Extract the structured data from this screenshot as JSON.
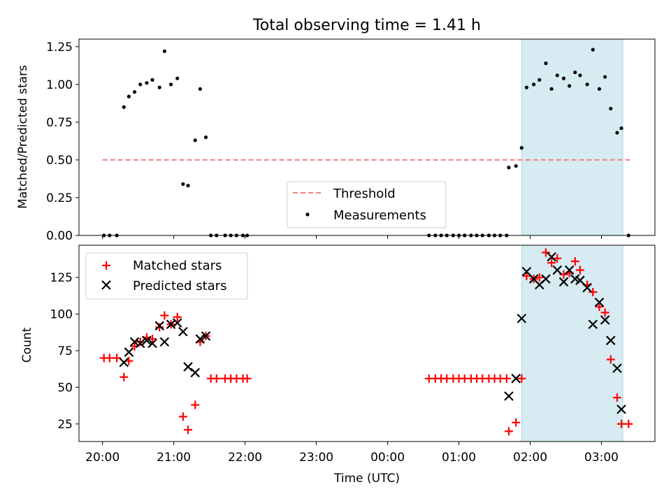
{
  "chart_data": [
    {
      "type": "scatter",
      "title": "Total observing time = 1.41 h",
      "xlabel": "",
      "ylabel": "Matched/Predicted stars",
      "ylim": [
        0,
        1.3
      ],
      "yticks": [
        "0.00",
        "0.25",
        "0.50",
        "0.75",
        "1.00",
        "1.25"
      ],
      "xlim": [
        19.67,
        27.75
      ],
      "shaded_region": [
        25.88,
        27.3
      ],
      "shaded_color": "#add8e6",
      "threshold": {
        "name": "Threshold",
        "value": 0.5,
        "x": [
          20.0,
          27.4
        ],
        "color": "#f08080"
      },
      "legend": {
        "position": "bottom-center",
        "entries": [
          "Threshold",
          "Measurements"
        ]
      },
      "series": [
        {
          "name": "Measurements",
          "color": "#000000",
          "x": [
            20.02,
            20.1,
            20.2,
            20.3,
            20.37,
            20.45,
            20.53,
            20.62,
            20.7,
            20.8,
            20.87,
            20.96,
            21.05,
            21.13,
            21.2,
            21.3,
            21.37,
            21.45,
            21.52,
            21.6,
            21.72,
            21.8,
            21.88,
            21.97,
            22.03,
            24.58,
            24.67,
            24.75,
            24.83,
            24.92,
            25.0,
            25.08,
            25.17,
            25.25,
            25.33,
            25.42,
            25.5,
            25.58,
            25.67,
            25.7,
            25.8,
            25.88,
            25.95,
            26.05,
            26.13,
            26.22,
            26.3,
            26.38,
            26.47,
            26.55,
            26.63,
            26.7,
            26.8,
            26.88,
            26.97,
            27.05,
            27.13,
            27.22,
            27.28,
            27.38
          ],
          "y": [
            0,
            0,
            0,
            0.85,
            0.92,
            0.95,
            1.0,
            1.01,
            1.03,
            0.98,
            1.22,
            1.0,
            1.04,
            0.34,
            0.33,
            0.63,
            0.97,
            0.65,
            0,
            0,
            0,
            0,
            0,
            0,
            0,
            0,
            0,
            0,
            0,
            0,
            0,
            0,
            0,
            0,
            0,
            0,
            0,
            0,
            0,
            0.45,
            0.46,
            0.58,
            0.98,
            1.0,
            1.03,
            1.14,
            0.97,
            1.06,
            1.04,
            0.99,
            1.08,
            1.06,
            1.0,
            1.23,
            0.97,
            1.05,
            0.84,
            0.68,
            0.71,
            0
          ]
        }
      ]
    },
    {
      "type": "scatter",
      "title": "",
      "xlabel": "Time (UTC)",
      "ylabel": "Count",
      "ylim": [
        13,
        147
      ],
      "yticks": [
        "25",
        "50",
        "75",
        "100",
        "125"
      ],
      "xlim": [
        19.67,
        27.75
      ],
      "xticks": [
        20,
        21,
        22,
        23,
        24,
        25,
        26,
        27
      ],
      "xtick_labels": [
        "20:00",
        "21:00",
        "22:00",
        "23:00",
        "00:00",
        "01:00",
        "02:00",
        "03:00"
      ],
      "shaded_region": [
        25.88,
        27.3
      ],
      "shaded_color": "#add8e6",
      "legend": {
        "position": "top-left",
        "entries": [
          "Matched stars",
          "Predicted stars"
        ]
      },
      "series": [
        {
          "name": "Matched stars",
          "marker": "+",
          "color": "#ff0000",
          "x": [
            20.02,
            20.1,
            20.2,
            20.3,
            20.37,
            20.45,
            20.53,
            20.62,
            20.7,
            20.8,
            20.87,
            20.96,
            21.05,
            21.13,
            21.2,
            21.3,
            21.37,
            21.45,
            21.52,
            21.6,
            21.72,
            21.8,
            21.88,
            21.97,
            22.03,
            24.58,
            24.67,
            24.75,
            24.83,
            24.92,
            25.0,
            25.08,
            25.17,
            25.25,
            25.33,
            25.42,
            25.5,
            25.58,
            25.67,
            25.7,
            25.8,
            25.88,
            25.95,
            26.05,
            26.13,
            26.22,
            26.3,
            26.38,
            26.47,
            26.55,
            26.63,
            26.7,
            26.8,
            26.88,
            26.97,
            27.05,
            27.13,
            27.22,
            27.28,
            27.38
          ],
          "y": [
            70,
            70,
            70,
            57,
            68,
            78,
            81,
            84,
            83,
            91,
            99,
            93,
            98,
            30,
            21,
            38,
            81,
            85,
            56,
            56,
            56,
            56,
            56,
            56,
            56,
            56,
            56,
            56,
            56,
            56,
            56,
            56,
            56,
            56,
            56,
            56,
            56,
            56,
            56,
            20,
            26,
            56,
            126,
            124,
            125,
            142,
            135,
            138,
            127,
            128,
            136,
            130,
            120,
            115,
            105,
            101,
            69,
            43,
            25,
            25
          ]
        },
        {
          "name": "Predicted stars",
          "marker": "x",
          "color": "#000000",
          "x": [
            20.3,
            20.37,
            20.45,
            20.53,
            20.62,
            20.7,
            20.8,
            20.87,
            20.96,
            21.05,
            21.13,
            21.2,
            21.3,
            21.37,
            21.45,
            25.7,
            25.8,
            25.88,
            25.95,
            26.05,
            26.13,
            26.22,
            26.3,
            26.38,
            26.47,
            26.55,
            26.63,
            26.7,
            26.8,
            26.88,
            26.97,
            27.05,
            27.13,
            27.22,
            27.28
          ],
          "y": [
            67,
            74,
            81,
            80,
            82,
            80,
            92,
            81,
            93,
            94,
            88,
            64,
            60,
            83,
            85,
            44,
            56,
            97,
            129,
            124,
            120,
            124,
            139,
            130,
            122,
            130,
            124,
            123,
            118,
            93,
            108,
            96,
            82,
            63,
            35
          ]
        }
      ]
    }
  ]
}
